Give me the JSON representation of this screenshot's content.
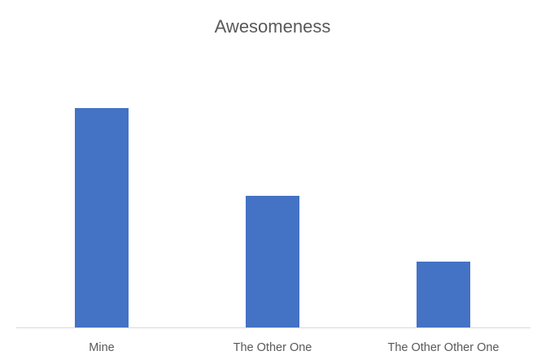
{
  "chart_data": {
    "type": "bar",
    "title": "Awesomeness",
    "categories": [
      "Mine",
      "The Other One",
      "The Other Other One"
    ],
    "values": [
      10,
      6,
      3
    ],
    "color": "#4472c4"
  }
}
